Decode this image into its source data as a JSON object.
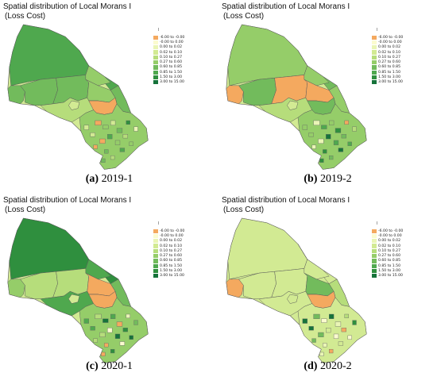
{
  "legend_items": [
    {
      "label": "-6.00 to -0.00",
      "color": "#f4a95f"
    },
    {
      "label": "-0.00 to 0.00",
      "color": "#fbfbcf"
    },
    {
      "label": "0.00 to 0.02",
      "color": "#eaf5b5"
    },
    {
      "label": "0.02 to 0.10",
      "color": "#d2ea93"
    },
    {
      "label": "0.10 to 0.27",
      "color": "#b6dd7b"
    },
    {
      "label": "0.27 to 0.60",
      "color": "#95cd69"
    },
    {
      "label": "0.60 to 0.85",
      "color": "#72bb5c"
    },
    {
      "label": "0.85 to 1.50",
      "color": "#4fa84e"
    },
    {
      "label": "1.50 to 3.00",
      "color": "#2f8f3e"
    },
    {
      "label": "3.00 to 15.00",
      "color": "#16733a"
    }
  ],
  "panels": [
    {
      "title_line1": "Spatial distribution of Local Morans I",
      "title_line2": "(Loss Cost)",
      "caption_letter": "(a)",
      "caption_period": "2019-1",
      "north_symbol": "l",
      "region_class": {
        "north": 7,
        "far_north_east": 7,
        "west": 6,
        "central_w": 6,
        "central": 6,
        "central_e": 5,
        "east_tip": 6,
        "south_w": 4,
        "south_c": 0,
        "south_e": 5,
        "lake_patch": 3,
        "hudson": 5
      }
    },
    {
      "title_line1": "Spatial distribution of Local Morans I",
      "title_line2": "(Loss Cost)",
      "caption_letter": "(b)",
      "caption_period": "2019-2",
      "north_symbol": "l",
      "region_class": {
        "north": 5,
        "far_north_east": 6,
        "west": 0,
        "central_w": 6,
        "central": 0,
        "central_e": 0,
        "east_tip": 5,
        "south_w": 4,
        "south_c": 6,
        "south_e": 5,
        "lake_patch": 3,
        "hudson": 5
      }
    },
    {
      "title_line1": "Spatial distribution of Local Morans I",
      "title_line2": "(Loss Cost)",
      "caption_letter": "(c)",
      "caption_period": "2020-1",
      "north_symbol": "l",
      "region_class": {
        "north": 8,
        "far_north_east": 8,
        "west": 5,
        "central_w": 4,
        "central": 4,
        "central_e": 0,
        "east_tip": 6,
        "south_w": 7,
        "south_c": 0,
        "south_e": 5,
        "lake_patch": 3,
        "hudson": 7
      }
    },
    {
      "title_line1": "Spatial distribution of Local Morans I",
      "title_line2": "(Loss Cost)",
      "caption_letter": "(d)",
      "caption_period": "2020-2",
      "north_symbol": "l",
      "region_class": {
        "north": 3,
        "far_north_east": 3,
        "west": 0,
        "central_w": 3,
        "central": 3,
        "central_e": 6,
        "east_tip": 4,
        "south_w": 3,
        "south_c": 0,
        "south_e": 3,
        "lake_patch": 3,
        "hudson": 3
      }
    }
  ]
}
